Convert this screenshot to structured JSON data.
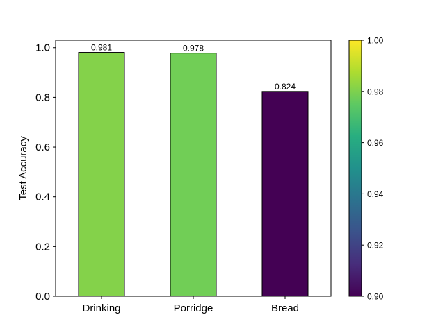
{
  "chart_data": {
    "type": "bar",
    "title": "",
    "xlabel": "",
    "ylabel": "Test Accuracy",
    "categories": [
      "Drinking",
      "Porridge",
      "Bread"
    ],
    "values": [
      0.981,
      0.978,
      0.824
    ],
    "data_labels": [
      "0.981",
      "0.978",
      "0.824"
    ],
    "ylim": [
      0,
      1.03
    ],
    "yticks": [
      0.0,
      0.2,
      0.4,
      0.6,
      0.8,
      1.0
    ],
    "ytick_labels": [
      "0.0",
      "0.2",
      "0.4",
      "0.6",
      "0.8",
      "1.0"
    ],
    "grid": false,
    "colormap": "viridis",
    "colorbar": {
      "range": [
        0.9,
        1.0
      ],
      "ticks": [
        0.9,
        0.92,
        0.94,
        0.96,
        0.98,
        1.0
      ],
      "tick_labels": [
        "0.90",
        "0.92",
        "0.94",
        "0.96",
        "0.98",
        "1.00"
      ]
    },
    "bar_edge_color": "#000000"
  }
}
